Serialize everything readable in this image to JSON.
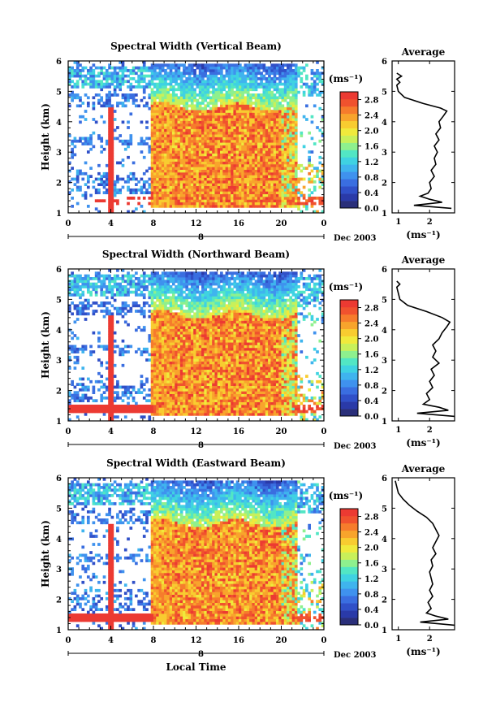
{
  "colors": {
    "scale": [
      "#2a2f7a",
      "#2a3aa8",
      "#3050c8",
      "#3a6ee0",
      "#3f92ee",
      "#3fb4ee",
      "#3fd2e2",
      "#52e6c4",
      "#8ef08e",
      "#c8f05a",
      "#f0ea3c",
      "#f8cc30",
      "#f8a42c",
      "#f67c2c",
      "#f0522e",
      "#ec3a32"
    ]
  },
  "colorbar": {
    "unit": "(ms⁻¹)",
    "ticks": [
      "0.0",
      "0.4",
      "0.8",
      "1.2",
      "1.6",
      "2.0",
      "2.4",
      "2.8"
    ]
  },
  "date_label": "Dec 2003",
  "day_label": "8",
  "xlabel_bottom": "Local Time",
  "chart_data": [
    {
      "type": "heatmap",
      "title": "Spectral Width (Vertical Beam)",
      "xlabel": "",
      "ylabel": "Height (km)",
      "xlim": [
        0,
        24
      ],
      "ylim": [
        1,
        6
      ],
      "xticks": [
        "0",
        "4",
        "8",
        "12",
        "16",
        "20",
        "0"
      ],
      "yticks": [
        "1",
        "2",
        "3",
        "4",
        "5",
        "6"
      ],
      "colorbar_range": [
        0,
        3.0
      ],
      "average_profile": {
        "title": "Average",
        "xlabel": "(ms⁻¹)",
        "xticks": [
          "1",
          "2"
        ],
        "xlim": [
          0.8,
          2.8
        ],
        "height": [
          1.15,
          1.25,
          1.35,
          1.45,
          1.55,
          1.65,
          1.8,
          2.0,
          2.2,
          2.4,
          2.6,
          2.8,
          3.0,
          3.2,
          3.4,
          3.6,
          3.8,
          4.0,
          4.2,
          4.35,
          4.45,
          4.6,
          4.8,
          5.0,
          5.2,
          5.3,
          5.4,
          5.5,
          5.6
        ],
        "width": [
          2.7,
          1.5,
          2.4,
          2.0,
          1.7,
          1.95,
          2.05,
          2.0,
          2.15,
          2.05,
          2.2,
          2.15,
          2.25,
          2.15,
          2.3,
          2.2,
          2.35,
          2.3,
          2.45,
          2.55,
          2.35,
          1.8,
          1.2,
          1.0,
          0.95,
          1.05,
          0.95,
          1.1,
          0.95
        ]
      }
    },
    {
      "type": "heatmap",
      "title": "Spectral Width (Northward Beam)",
      "xlabel": "",
      "ylabel": "Height (km)",
      "xlim": [
        0,
        24
      ],
      "ylim": [
        1,
        6
      ],
      "xticks": [
        "0",
        "4",
        "8",
        "12",
        "16",
        "20",
        "0"
      ],
      "yticks": [
        "1",
        "2",
        "3",
        "4",
        "5",
        "6"
      ],
      "colorbar_range": [
        0,
        3.0
      ],
      "average_profile": {
        "title": "Average",
        "xlabel": "(ms⁻¹)",
        "xticks": [
          "1",
          "2"
        ],
        "xlim": [
          0.8,
          2.8
        ],
        "height": [
          1.15,
          1.25,
          1.35,
          1.45,
          1.55,
          1.7,
          1.9,
          2.1,
          2.3,
          2.5,
          2.7,
          2.9,
          3.1,
          3.3,
          3.5,
          3.7,
          3.9,
          4.1,
          4.25,
          4.4,
          4.6,
          4.8,
          5.0,
          5.2,
          5.4,
          5.5,
          5.6
        ],
        "width": [
          2.8,
          1.6,
          2.6,
          2.3,
          1.8,
          2.0,
          1.9,
          2.1,
          2.0,
          2.15,
          2.05,
          2.3,
          2.1,
          2.2,
          2.1,
          2.3,
          2.4,
          2.55,
          2.65,
          2.4,
          1.9,
          1.3,
          1.05,
          1.0,
          0.95,
          1.05,
          0.95
        ]
      }
    },
    {
      "type": "heatmap",
      "title": "Spectral Width (Eastward Beam)",
      "xlabel": "Local Time",
      "ylabel": "Height (km)",
      "xlim": [
        0,
        24
      ],
      "ylim": [
        1,
        6
      ],
      "xticks": [
        "0",
        "4",
        "8",
        "12",
        "16",
        "20",
        "0"
      ],
      "yticks": [
        "1",
        "2",
        "3",
        "4",
        "5",
        "6"
      ],
      "colorbar_range": [
        0,
        3.0
      ],
      "average_profile": {
        "title": "Average",
        "xlabel": "(ms⁻¹)",
        "xticks": [
          "1",
          "2"
        ],
        "xlim": [
          0.8,
          2.8
        ],
        "height": [
          1.15,
          1.25,
          1.35,
          1.45,
          1.55,
          1.7,
          1.9,
          2.1,
          2.3,
          2.5,
          2.7,
          2.9,
          3.1,
          3.3,
          3.5,
          3.7,
          3.9,
          4.1,
          4.3,
          4.5,
          4.7,
          4.9,
          5.1,
          5.3,
          5.5,
          5.7,
          5.9
        ],
        "width": [
          2.8,
          1.7,
          2.6,
          2.2,
          1.9,
          2.05,
          1.95,
          2.1,
          2.0,
          2.1,
          2.05,
          2.0,
          2.1,
          2.05,
          2.2,
          2.1,
          2.2,
          2.3,
          2.2,
          2.1,
          1.9,
          1.6,
          1.35,
          1.15,
          1.0,
          0.95,
          0.9
        ]
      }
    }
  ]
}
